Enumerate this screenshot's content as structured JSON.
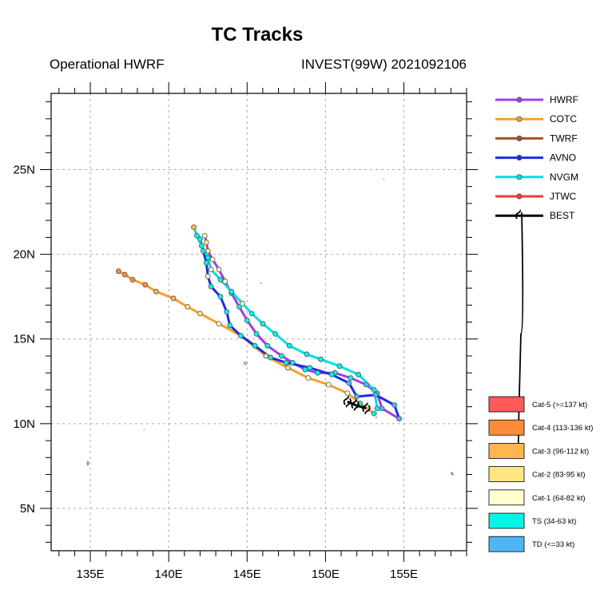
{
  "chart_data": {
    "type": "line",
    "title": "TC Tracks",
    "subtitle_left": "Operational HWRF",
    "subtitle_right": "INVEST(99W) 2021092106",
    "xlim": [
      132.5,
      159.0
    ],
    "ylim": [
      2.5,
      29.5
    ],
    "x_ticks": [
      {
        "value": 135,
        "label": "135E"
      },
      {
        "value": 140,
        "label": "140E"
      },
      {
        "value": 145,
        "label": "145E"
      },
      {
        "value": 150,
        "label": "150E"
      },
      {
        "value": 155,
        "label": "155E"
      }
    ],
    "y_ticks": [
      {
        "value": 5,
        "label": "5N"
      },
      {
        "value": 10,
        "label": "10N"
      },
      {
        "value": 15,
        "label": "15N"
      },
      {
        "value": 20,
        "label": "20N"
      },
      {
        "value": 25,
        "label": "25N"
      }
    ],
    "grid": true,
    "legend_position": "right",
    "series": [
      {
        "name": "HWRF",
        "color": "#a040e0",
        "points": [
          {
            "lon": 154.7,
            "lat": 10.3,
            "cat": "TD"
          },
          {
            "lon": 153.6,
            "lat": 10.9,
            "cat": "TD"
          },
          {
            "lon": 153.3,
            "lat": 11.8,
            "cat": "TD"
          },
          {
            "lon": 152.6,
            "lat": 12.3,
            "cat": "TD"
          },
          {
            "lon": 151.6,
            "lat": 12.7,
            "cat": "TS"
          },
          {
            "lon": 150.6,
            "lat": 13.0,
            "cat": "TS"
          },
          {
            "lon": 149.5,
            "lat": 13.0,
            "cat": "TS"
          },
          {
            "lon": 148.7,
            "lat": 13.2,
            "cat": "TS"
          },
          {
            "lon": 147.9,
            "lat": 13.6,
            "cat": "TS"
          },
          {
            "lon": 147.2,
            "lat": 14.0,
            "cat": "TS"
          },
          {
            "lon": 146.3,
            "lat": 14.6,
            "cat": "TS"
          },
          {
            "lon": 145.6,
            "lat": 15.3,
            "cat": "TS"
          },
          {
            "lon": 145.0,
            "lat": 16.1,
            "cat": "TS"
          },
          {
            "lon": 144.5,
            "lat": 16.9,
            "cat": "TS"
          },
          {
            "lon": 144.0,
            "lat": 17.7,
            "cat": "TS"
          },
          {
            "lon": 143.6,
            "lat": 18.4,
            "cat": "Cat-1"
          },
          {
            "lon": 143.2,
            "lat": 19.1,
            "cat": "Cat-1"
          },
          {
            "lon": 142.8,
            "lat": 19.7,
            "cat": "Cat-1"
          },
          {
            "lon": 142.5,
            "lat": 20.2,
            "cat": "Cat-2"
          },
          {
            "lon": 142.4,
            "lat": 20.7,
            "cat": "Cat-2"
          },
          {
            "lon": 142.3,
            "lat": 21.1,
            "cat": "Cat-1"
          }
        ]
      },
      {
        "name": "COTC",
        "color": "#f5a030",
        "points": [
          {
            "lon": 153.1,
            "lat": 10.6,
            "cat": "TS"
          },
          {
            "lon": 152.2,
            "lat": 11.2,
            "cat": "TS"
          },
          {
            "lon": 151.4,
            "lat": 11.8,
            "cat": "Cat-1"
          },
          {
            "lon": 150.2,
            "lat": 12.3,
            "cat": "Cat-1"
          },
          {
            "lon": 148.9,
            "lat": 12.7,
            "cat": "Cat-1"
          },
          {
            "lon": 147.6,
            "lat": 13.3,
            "cat": "Cat-2"
          },
          {
            "lon": 146.2,
            "lat": 14.0,
            "cat": "Cat-2"
          },
          {
            "lon": 144.6,
            "lat": 15.2,
            "cat": "Cat-1"
          },
          {
            "lon": 143.2,
            "lat": 15.9,
            "cat": "Cat-1"
          },
          {
            "lon": 142.0,
            "lat": 16.5,
            "cat": "Cat-2"
          },
          {
            "lon": 141.2,
            "lat": 16.9,
            "cat": "Cat-2"
          },
          {
            "lon": 140.3,
            "lat": 17.4,
            "cat": "Cat-3"
          },
          {
            "lon": 139.2,
            "lat": 17.8,
            "cat": "Cat-3"
          },
          {
            "lon": 138.5,
            "lat": 18.2,
            "cat": "Cat-4"
          },
          {
            "lon": 137.7,
            "lat": 18.5,
            "cat": "Cat-4"
          },
          {
            "lon": 137.2,
            "lat": 18.8,
            "cat": "Cat-4"
          },
          {
            "lon": 136.8,
            "lat": 19.0,
            "cat": "Cat-4"
          }
        ]
      },
      {
        "name": "TWRF",
        "color": "#a0522d",
        "points": []
      },
      {
        "name": "AVNO",
        "color": "#1a2ee0",
        "points": [
          {
            "lon": 154.7,
            "lat": 10.3,
            "cat": "TD"
          },
          {
            "lon": 154.4,
            "lat": 11.1,
            "cat": "TD"
          },
          {
            "lon": 153.2,
            "lat": 11.7,
            "cat": "TD"
          },
          {
            "lon": 152.0,
            "lat": 11.6,
            "cat": "TD"
          },
          {
            "lon": 151.5,
            "lat": 12.4,
            "cat": "TD"
          },
          {
            "lon": 150.4,
            "lat": 12.9,
            "cat": "TS"
          },
          {
            "lon": 149.0,
            "lat": 13.3,
            "cat": "TS"
          },
          {
            "lon": 147.5,
            "lat": 13.6,
            "cat": "TS"
          },
          {
            "lon": 146.5,
            "lat": 13.9,
            "cat": "TS"
          },
          {
            "lon": 145.5,
            "lat": 14.6,
            "cat": "TS"
          },
          {
            "lon": 144.6,
            "lat": 15.2,
            "cat": "TS"
          },
          {
            "lon": 143.9,
            "lat": 15.8,
            "cat": "TS"
          },
          {
            "lon": 143.7,
            "lat": 16.6,
            "cat": "TS"
          },
          {
            "lon": 143.3,
            "lat": 17.5,
            "cat": "TS"
          },
          {
            "lon": 142.7,
            "lat": 18.1,
            "cat": "TS"
          },
          {
            "lon": 142.5,
            "lat": 18.7,
            "cat": "Cat-1"
          },
          {
            "lon": 142.4,
            "lat": 19.5,
            "cat": "TS"
          },
          {
            "lon": 142.2,
            "lat": 20.2,
            "cat": "TS"
          },
          {
            "lon": 142.0,
            "lat": 20.9,
            "cat": "TS"
          }
        ]
      },
      {
        "name": "NVGM",
        "color": "#00e0e0",
        "points": [
          {
            "lon": 153.3,
            "lat": 10.9,
            "cat": "TS"
          },
          {
            "lon": 153.1,
            "lat": 12.0,
            "cat": "TS"
          },
          {
            "lon": 152.1,
            "lat": 12.9,
            "cat": "TS"
          },
          {
            "lon": 150.9,
            "lat": 13.4,
            "cat": "TS"
          },
          {
            "lon": 149.7,
            "lat": 13.8,
            "cat": "TS"
          },
          {
            "lon": 148.8,
            "lat": 14.1,
            "cat": "TS"
          },
          {
            "lon": 147.7,
            "lat": 14.6,
            "cat": "TS"
          },
          {
            "lon": 146.8,
            "lat": 15.3,
            "cat": "TS"
          },
          {
            "lon": 146.0,
            "lat": 15.9,
            "cat": "TS"
          },
          {
            "lon": 145.3,
            "lat": 16.5,
            "cat": "TS"
          },
          {
            "lon": 144.7,
            "lat": 17.1,
            "cat": "Cat-1"
          },
          {
            "lon": 144.0,
            "lat": 17.8,
            "cat": "TS"
          },
          {
            "lon": 143.3,
            "lat": 18.5,
            "cat": "TS"
          },
          {
            "lon": 142.7,
            "lat": 19.1,
            "cat": "Cat-1"
          },
          {
            "lon": 142.5,
            "lat": 19.8,
            "cat": "TS"
          },
          {
            "lon": 142.1,
            "lat": 20.5,
            "cat": "TS"
          },
          {
            "lon": 141.8,
            "lat": 21.1,
            "cat": "TS"
          },
          {
            "lon": 141.6,
            "lat": 21.6,
            "cat": "Cat-3"
          }
        ]
      },
      {
        "name": "JTWC",
        "color": "#f03c3c",
        "points": []
      },
      {
        "name": "BEST",
        "color": "#000000",
        "points": [
          {
            "lon": 152.6,
            "lat": 10.9,
            "cat": "TD"
          },
          {
            "lon": 151.9,
            "lat": 11.1,
            "cat": "TD"
          },
          {
            "lon": 151.4,
            "lat": 11.3,
            "cat": "TD"
          }
        ]
      }
    ],
    "intensity_legend": [
      {
        "label": "Cat-5 (>=137 kt)",
        "color": "#ff5a5a"
      },
      {
        "label": "Cat-4 (113-136 kt)",
        "color": "#ff8c3a"
      },
      {
        "label": "Cat-3 (96-112 kt)",
        "color": "#ffb74d"
      },
      {
        "label": "Cat-2 (83-95 kt)",
        "color": "#ffe680"
      },
      {
        "label": "Cat-1 (64-82 kt)",
        "color": "#ffffd0"
      },
      {
        "label": "TS (34-63 kt)",
        "color": "#00f5e8"
      },
      {
        "label": "TD (<=33 kt)",
        "color": "#4fb6f5"
      }
    ]
  }
}
